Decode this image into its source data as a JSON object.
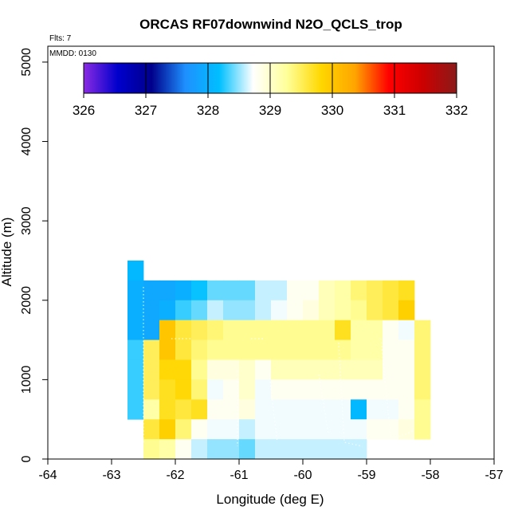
{
  "chart_data": {
    "type": "heatmap",
    "title": "ORCAS RF07downwind N2O_QCLS_trop",
    "note_flights": "Flts: 7",
    "note_date": "MMDD: 0130",
    "xlabel": "Longitude (deg E)",
    "ylabel": "Altitude (m)",
    "xlim": [
      -64,
      -57
    ],
    "ylim": [
      0,
      5200
    ],
    "xticks": [
      "-64",
      "-63",
      "-62",
      "-61",
      "-60",
      "-59",
      "-58",
      "-57"
    ],
    "yticks": [
      "0",
      "1000",
      "2000",
      "3000",
      "4000",
      "5000"
    ],
    "colorbar": {
      "min": 326,
      "max": 332,
      "ticks": [
        "326",
        "327",
        "328",
        "329",
        "330",
        "331",
        "332"
      ],
      "stops": [
        "#8a2be2",
        "#0000cd",
        "#00008b",
        "#1e90ff",
        "#00bfff",
        "#ffffff",
        "#ffff99",
        "#ffd700",
        "#ffa500",
        "#ff0000",
        "#cc0000",
        "#8b1a1a"
      ]
    },
    "cell_lon_width": 0.25,
    "cell_alt_height": 250,
    "cells": [
      [
        -62.75,
        2250,
        328.1
      ],
      [
        -62.75,
        2000,
        328.0
      ],
      [
        -62.75,
        1750,
        328.0
      ],
      [
        -62.75,
        1500,
        328.0
      ],
      [
        -62.75,
        1250,
        328.3
      ],
      [
        -62.75,
        1000,
        328.3
      ],
      [
        -62.75,
        750,
        328.3
      ],
      [
        -62.75,
        500,
        328.3
      ],
      [
        -62.5,
        2000,
        327.9
      ],
      [
        -62.5,
        1750,
        327.9
      ],
      [
        -62.5,
        1500,
        327.9
      ],
      [
        -62.5,
        1250,
        329.5
      ],
      [
        -62.5,
        1000,
        329.5
      ],
      [
        -62.5,
        750,
        329.5
      ],
      [
        -62.5,
        500,
        329.2
      ],
      [
        -62.5,
        250,
        329.6
      ],
      [
        -62.5,
        0,
        329.3
      ],
      [
        -62.25,
        2000,
        327.9
      ],
      [
        -62.25,
        1750,
        328.0
      ],
      [
        -62.25,
        1500,
        330.0
      ],
      [
        -62.25,
        1250,
        330.0
      ],
      [
        -62.25,
        1000,
        329.8
      ],
      [
        -62.25,
        750,
        329.7
      ],
      [
        -62.25,
        500,
        329.7
      ],
      [
        -62.25,
        250,
        329.9
      ],
      [
        -62.25,
        0,
        329.2
      ],
      [
        -62.0,
        2000,
        328.0
      ],
      [
        -62.0,
        1750,
        328.3
      ],
      [
        -62.0,
        1500,
        329.6
      ],
      [
        -62.0,
        1250,
        329.6
      ],
      [
        -62.0,
        1000,
        329.8
      ],
      [
        -62.0,
        750,
        329.8
      ],
      [
        -62.0,
        500,
        329.6
      ],
      [
        -62.0,
        250,
        329.4
      ],
      [
        -62.0,
        0,
        328.8
      ],
      [
        -61.75,
        2000,
        328.2
      ],
      [
        -61.75,
        1750,
        328.4
      ],
      [
        -61.75,
        1500,
        329.5
      ],
      [
        -61.75,
        1250,
        329.4
      ],
      [
        -61.75,
        1000,
        329.3
      ],
      [
        -61.75,
        750,
        329.4
      ],
      [
        -61.75,
        500,
        329.7
      ],
      [
        -61.75,
        250,
        328.8
      ],
      [
        -61.75,
        0,
        328.6
      ],
      [
        -61.5,
        2000,
        328.4
      ],
      [
        -61.5,
        1750,
        328.6
      ],
      [
        -61.5,
        1500,
        329.4
      ],
      [
        -61.5,
        1250,
        329.3
      ],
      [
        -61.5,
        1000,
        328.9
      ],
      [
        -61.5,
        750,
        328.7
      ],
      [
        -61.5,
        500,
        328.8
      ],
      [
        -61.5,
        250,
        328.7
      ],
      [
        -61.5,
        0,
        328.5
      ],
      [
        -61.25,
        2000,
        328.4
      ],
      [
        -61.25,
        1750,
        328.5
      ],
      [
        -61.25,
        1500,
        329.3
      ],
      [
        -61.25,
        1250,
        329.3
      ],
      [
        -61.25,
        1000,
        328.9
      ],
      [
        -61.25,
        750,
        328.8
      ],
      [
        -61.25,
        500,
        328.8
      ],
      [
        -61.25,
        250,
        328.7
      ],
      [
        -61.25,
        0,
        328.5
      ],
      [
        -61.0,
        2000,
        328.4
      ],
      [
        -61.0,
        1750,
        328.5
      ],
      [
        -61.0,
        1500,
        329.3
      ],
      [
        -61.0,
        1250,
        329.3
      ],
      [
        -61.0,
        1000,
        329.0
      ],
      [
        -61.0,
        750,
        329.0
      ],
      [
        -61.0,
        500,
        328.9
      ],
      [
        -61.0,
        250,
        328.6
      ],
      [
        -61.0,
        0,
        328.4
      ],
      [
        -60.75,
        2000,
        328.6
      ],
      [
        -60.75,
        1750,
        328.6
      ],
      [
        -60.75,
        1500,
        329.3
      ],
      [
        -60.75,
        1250,
        329.3
      ],
      [
        -60.75,
        1000,
        328.8
      ],
      [
        -60.75,
        750,
        328.7
      ],
      [
        -60.75,
        500,
        328.7
      ],
      [
        -60.75,
        250,
        328.7
      ],
      [
        -60.75,
        0,
        328.6
      ],
      [
        -60.5,
        2000,
        328.6
      ],
      [
        -60.5,
        1750,
        328.7
      ],
      [
        -60.5,
        1500,
        329.3
      ],
      [
        -60.5,
        1250,
        329.3
      ],
      [
        -60.5,
        1000,
        329.1
      ],
      [
        -60.5,
        750,
        328.8
      ],
      [
        -60.5,
        500,
        328.7
      ],
      [
        -60.5,
        250,
        328.7
      ],
      [
        -60.5,
        0,
        328.6
      ],
      [
        -60.25,
        2000,
        328.8
      ],
      [
        -60.25,
        1750,
        328.8
      ],
      [
        -60.25,
        1500,
        329.3
      ],
      [
        -60.25,
        1250,
        329.3
      ],
      [
        -60.25,
        1000,
        329.1
      ],
      [
        -60.25,
        750,
        328.8
      ],
      [
        -60.25,
        500,
        328.7
      ],
      [
        -60.25,
        250,
        328.7
      ],
      [
        -60.25,
        0,
        328.6
      ],
      [
        -60.0,
        2000,
        328.8
      ],
      [
        -60.0,
        1750,
        328.9
      ],
      [
        -60.0,
        1500,
        329.3
      ],
      [
        -60.0,
        1250,
        329.3
      ],
      [
        -60.0,
        1000,
        329.1
      ],
      [
        -60.0,
        750,
        328.8
      ],
      [
        -60.0,
        500,
        328.7
      ],
      [
        -60.0,
        250,
        328.7
      ],
      [
        -60.0,
        0,
        328.6
      ],
      [
        -59.75,
        2000,
        329.1
      ],
      [
        -59.75,
        1750,
        329.1
      ],
      [
        -59.75,
        1500,
        329.3
      ],
      [
        -59.75,
        1250,
        329.3
      ],
      [
        -59.75,
        1000,
        329.1
      ],
      [
        -59.75,
        750,
        328.8
      ],
      [
        -59.75,
        500,
        328.7
      ],
      [
        -59.75,
        250,
        328.7
      ],
      [
        -59.75,
        0,
        328.6
      ],
      [
        -59.5,
        2000,
        329.2
      ],
      [
        -59.5,
        1750,
        329.2
      ],
      [
        -59.5,
        1500,
        329.7
      ],
      [
        -59.5,
        1250,
        329.3
      ],
      [
        -59.5,
        1000,
        329.1
      ],
      [
        -59.5,
        750,
        328.8
      ],
      [
        -59.5,
        500,
        328.7
      ],
      [
        -59.5,
        250,
        328.7
      ],
      [
        -59.5,
        0,
        328.6
      ],
      [
        -59.25,
        2000,
        329.4
      ],
      [
        -59.25,
        1750,
        329.3
      ],
      [
        -59.25,
        1500,
        329.2
      ],
      [
        -59.25,
        1250,
        329.2
      ],
      [
        -59.25,
        1000,
        329.1
      ],
      [
        -59.25,
        750,
        328.8
      ],
      [
        -59.25,
        500,
        328.1
      ],
      [
        -59.25,
        250,
        328.7
      ],
      [
        -59.25,
        0,
        328.6
      ],
      [
        -59.0,
        2000,
        329.5
      ],
      [
        -59.0,
        1750,
        329.5
      ],
      [
        -59.0,
        1500,
        329.2
      ],
      [
        -59.0,
        1250,
        329.2
      ],
      [
        -59.0,
        1000,
        329.1
      ],
      [
        -59.0,
        750,
        328.8
      ],
      [
        -59.0,
        500,
        328.7
      ],
      [
        -59.0,
        250,
        328.8
      ],
      [
        -58.75,
        2000,
        329.6
      ],
      [
        -58.75,
        1750,
        329.6
      ],
      [
        -58.75,
        1500,
        328.8
      ],
      [
        -58.75,
        1250,
        328.8
      ],
      [
        -58.75,
        1000,
        328.8
      ],
      [
        -58.75,
        750,
        328.8
      ],
      [
        -58.75,
        500,
        328.7
      ],
      [
        -58.75,
        250,
        328.8
      ],
      [
        -58.5,
        2000,
        329.7
      ],
      [
        -58.5,
        1750,
        329.9
      ],
      [
        -58.5,
        1500,
        328.7
      ],
      [
        -58.5,
        1250,
        328.8
      ],
      [
        -58.5,
        1000,
        328.8
      ],
      [
        -58.5,
        750,
        328.8
      ],
      [
        -58.5,
        500,
        328.8
      ],
      [
        -58.5,
        250,
        328.9
      ],
      [
        -58.25,
        1500,
        329.4
      ],
      [
        -58.25,
        1250,
        329.4
      ],
      [
        -58.25,
        1000,
        329.4
      ],
      [
        -58.25,
        750,
        329.4
      ],
      [
        -58.25,
        500,
        329.3
      ],
      [
        -58.25,
        250,
        329.3
      ]
    ]
  }
}
